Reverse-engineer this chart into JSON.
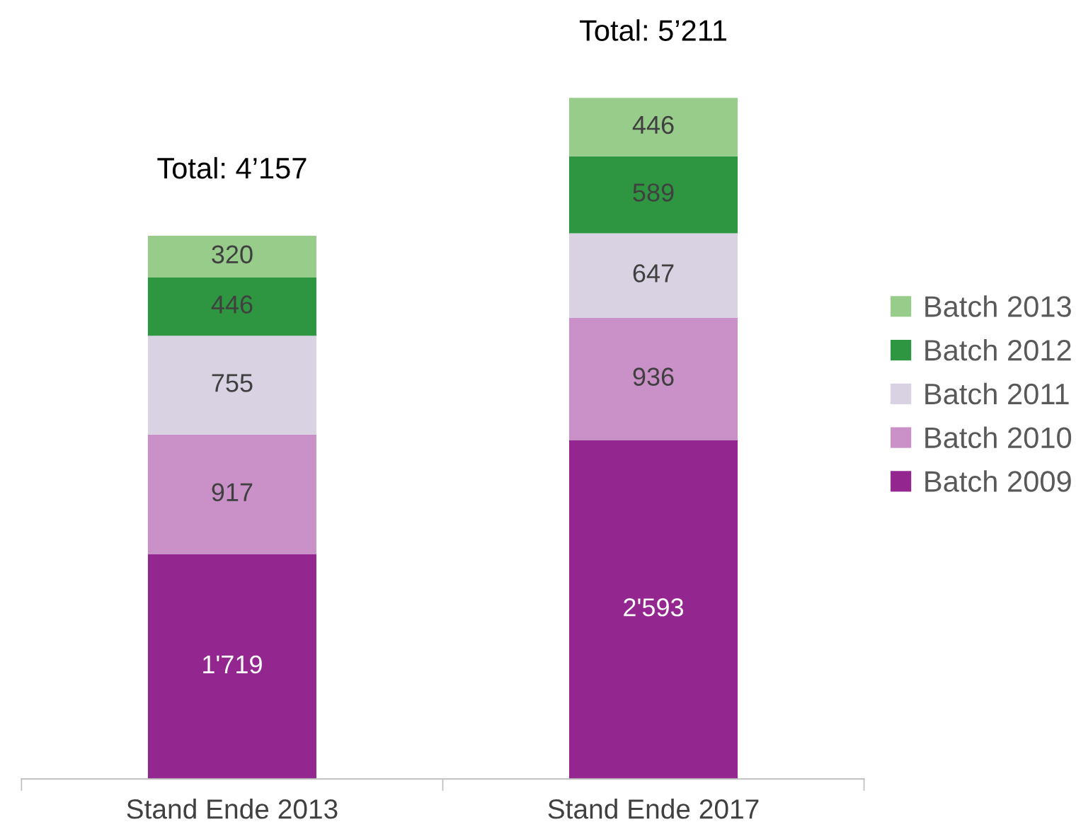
{
  "chart_data": {
    "type": "bar",
    "stacked": true,
    "categories": [
      "Stand Ende 2013",
      "Stand Ende 2017"
    ],
    "series": [
      {
        "name": "Batch 2009",
        "color": "#93278f",
        "values": [
          1719,
          2593
        ],
        "value_labels": [
          "1'719",
          "2'593"
        ]
      },
      {
        "name": "Batch 2010",
        "color": "#c991c7",
        "values": [
          917,
          936
        ],
        "value_labels": [
          "917",
          "936"
        ]
      },
      {
        "name": "Batch 2011",
        "color": "#d9d2e3",
        "values": [
          755,
          647
        ],
        "value_labels": [
          "755",
          "647"
        ]
      },
      {
        "name": "Batch 2012",
        "color": "#2e9640",
        "values": [
          446,
          589
        ],
        "value_labels": [
          "446",
          "589"
        ]
      },
      {
        "name": "Batch 2013",
        "color": "#97cc8a",
        "values": [
          320,
          446
        ],
        "value_labels": [
          "320",
          "446"
        ]
      }
    ],
    "totals": [
      "Total: 4’157",
      "Total: 5’211"
    ],
    "legend": "right",
    "grid": false
  }
}
